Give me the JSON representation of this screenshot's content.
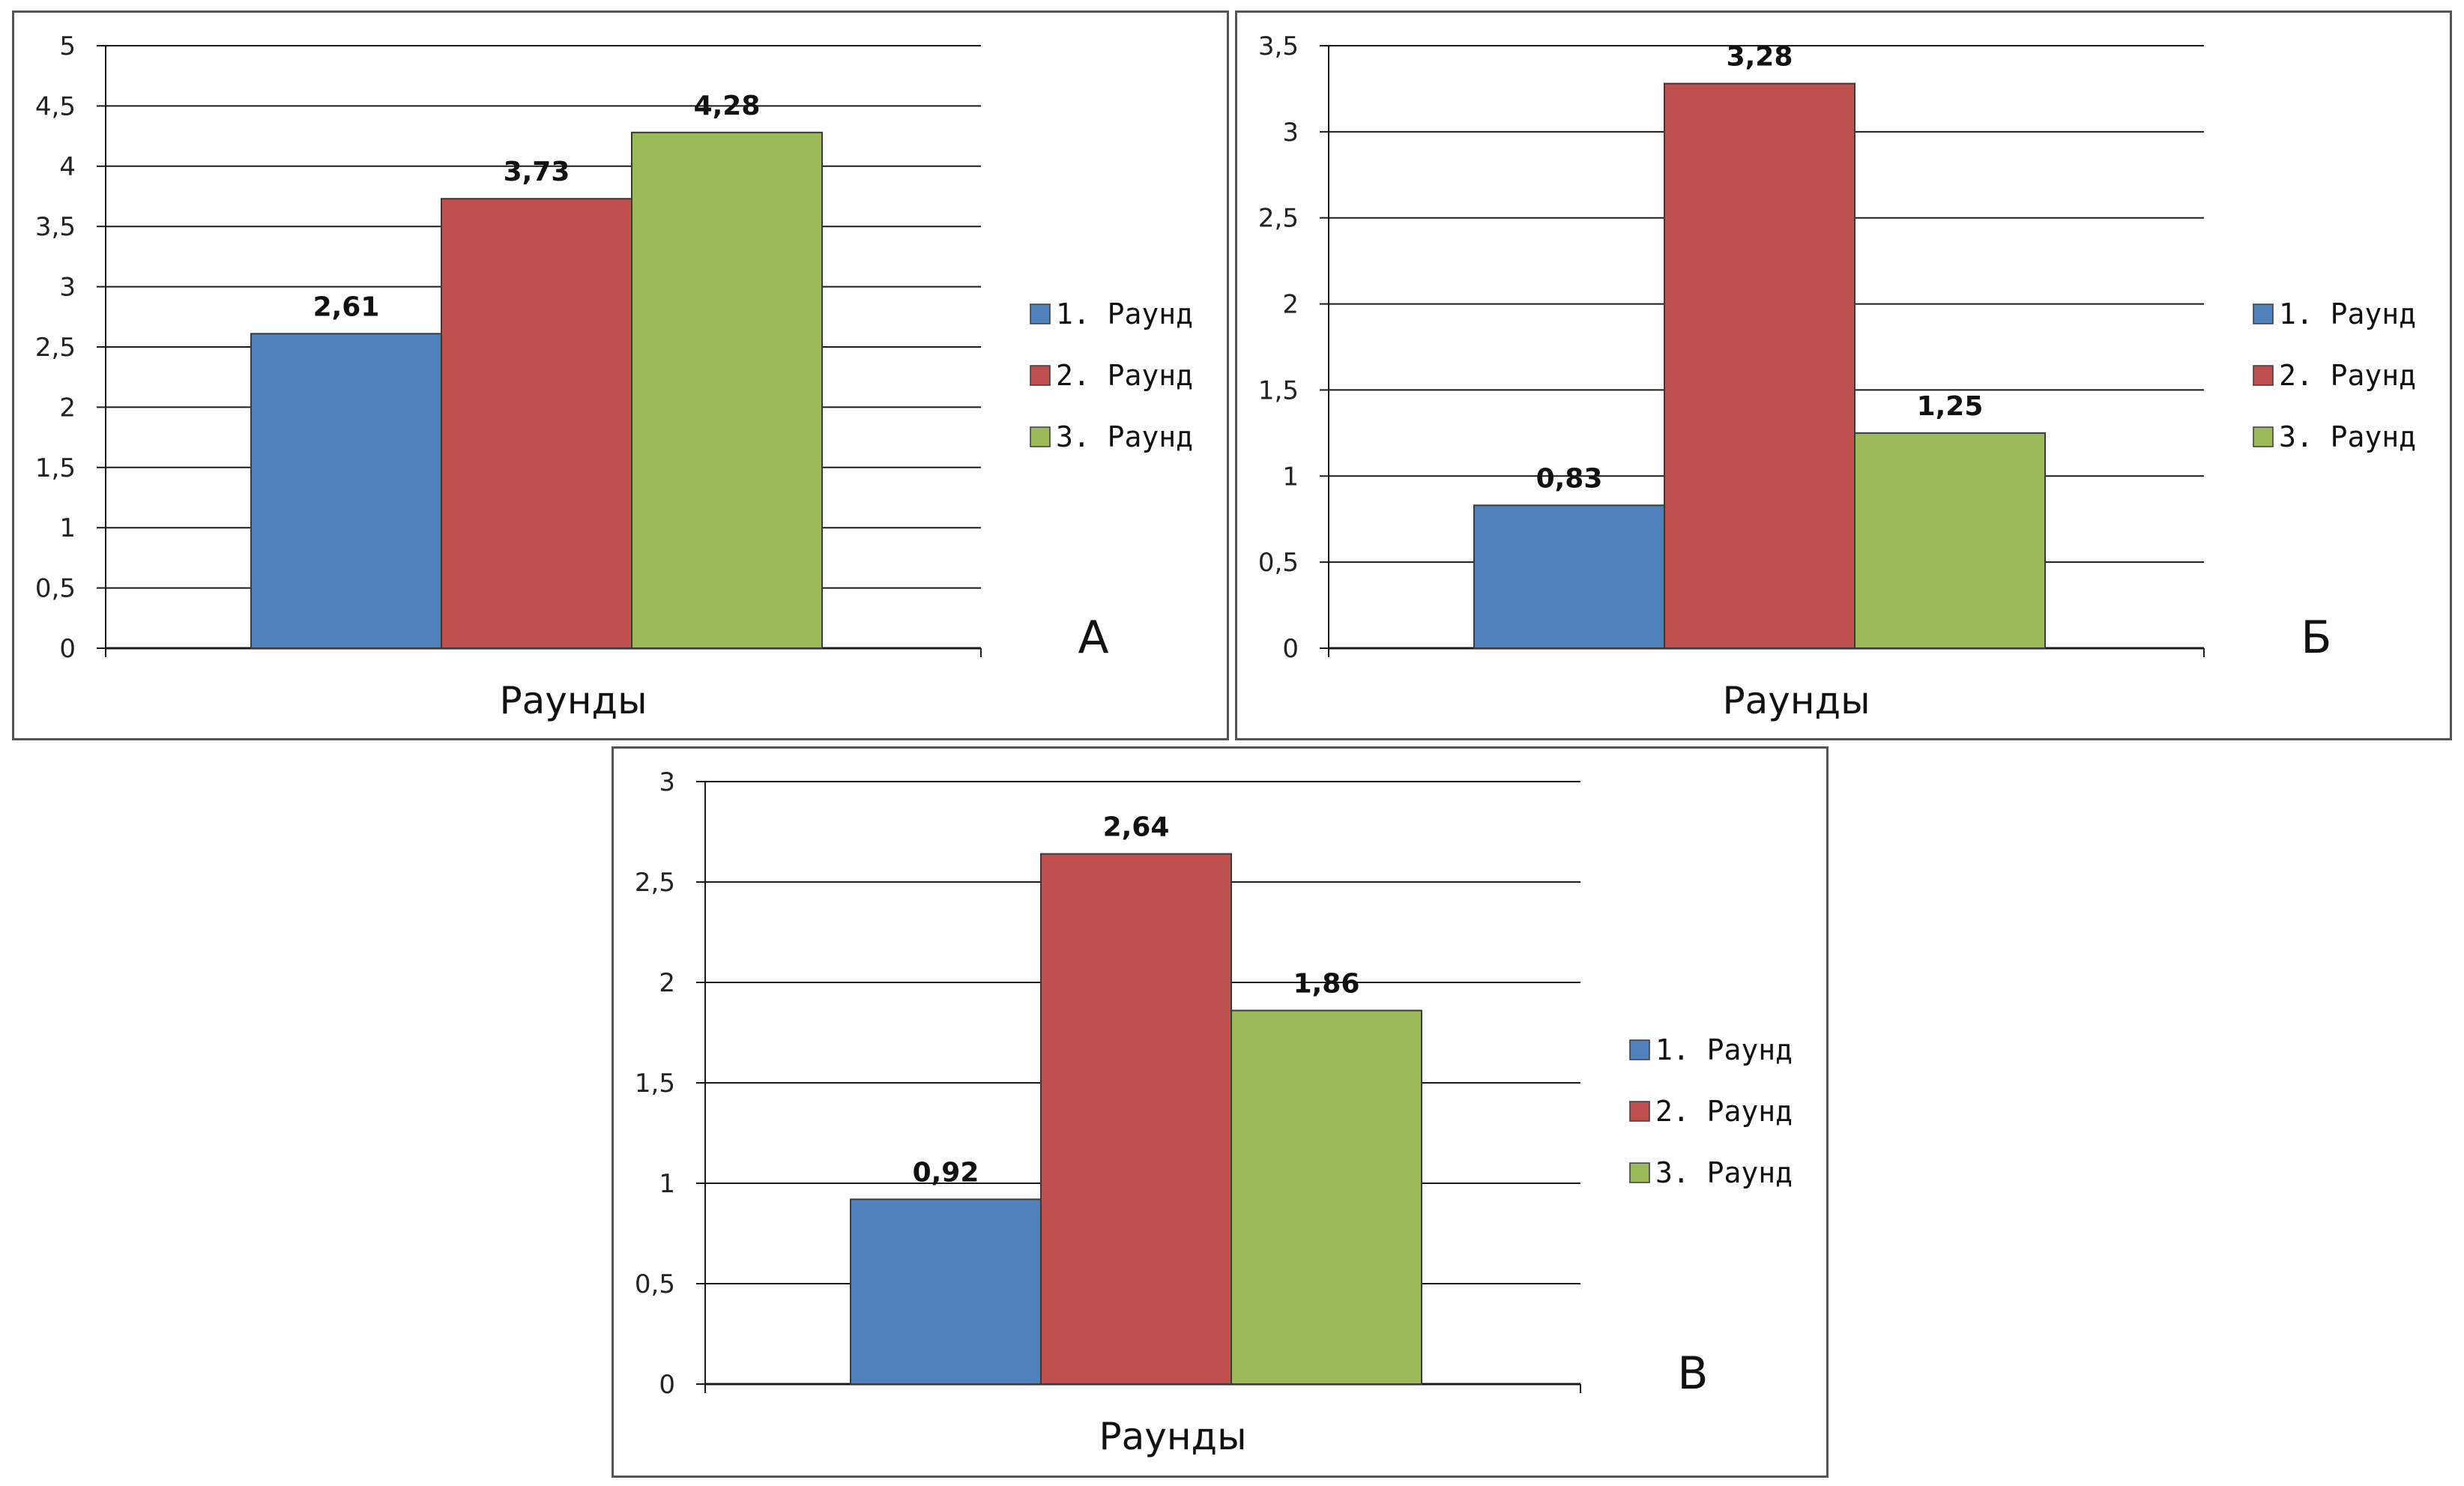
{
  "legend": [
    "1. Раунд",
    "2. Раунд",
    "3. Раунд"
  ],
  "colors": [
    "#4f81bd",
    "#c0504d",
    "#9bbb59"
  ],
  "chart_data": [
    {
      "type": "bar",
      "panel": "А",
      "xlabel": "Раунды",
      "series": [
        {
          "name": "1. Раунд",
          "value": 2.61,
          "label": "2,61"
        },
        {
          "name": "2. Раунд",
          "value": 3.73,
          "label": "3,73"
        },
        {
          "name": "3. Раунд",
          "value": 4.28,
          "label": "4,28"
        }
      ],
      "ylim": [
        0,
        5
      ],
      "yticks": [
        "0",
        "0,5",
        "1",
        "1,5",
        "2",
        "2,5",
        "3",
        "3,5",
        "4",
        "4,5",
        "5"
      ],
      "grid": true,
      "legend_position": "right"
    },
    {
      "type": "bar",
      "panel": "Б",
      "xlabel": "Раунды",
      "series": [
        {
          "name": "1. Раунд",
          "value": 0.83,
          "label": "0,83"
        },
        {
          "name": "2. Раунд",
          "value": 3.28,
          "label": "3,28"
        },
        {
          "name": "3. Раунд",
          "value": 1.25,
          "label": "1,25"
        }
      ],
      "ylim": [
        0,
        3.5
      ],
      "yticks": [
        "0",
        "0,5",
        "1",
        "1,5",
        "2",
        "2,5",
        "3",
        "3,5"
      ],
      "grid": true,
      "legend_position": "right"
    },
    {
      "type": "bar",
      "panel": "В",
      "xlabel": "Раунды",
      "series": [
        {
          "name": "1. Раунд",
          "value": 0.92,
          "label": "0,92"
        },
        {
          "name": "2. Раунд",
          "value": 2.64,
          "label": "2,64"
        },
        {
          "name": "3. Раунд",
          "value": 1.86,
          "label": "1,86"
        }
      ],
      "ylim": [
        0,
        3
      ],
      "yticks": [
        "0",
        "0,5",
        "1",
        "1,5",
        "2",
        "2,5",
        "3"
      ],
      "grid": true,
      "legend_position": "right"
    }
  ]
}
